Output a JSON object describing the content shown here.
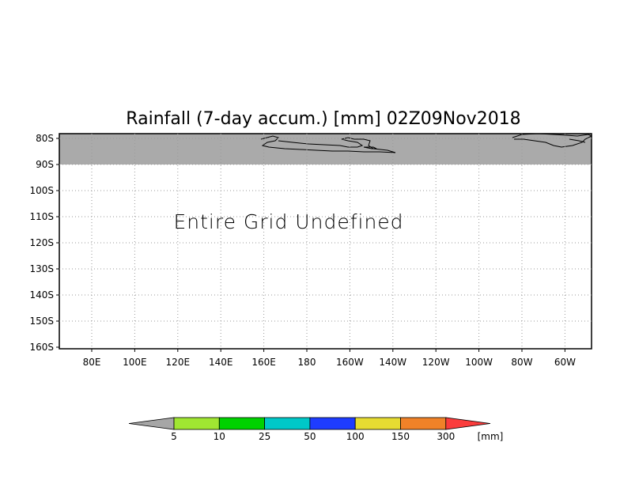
{
  "title": "Rainfall (7-day accum.) [mm] 02Z09Nov2018",
  "message": "Entire Grid Undefined",
  "map": {
    "lat_labels": [
      "80S",
      "90S",
      "100S",
      "110S",
      "120S",
      "130S",
      "140S",
      "150S",
      "160S"
    ],
    "lon_labels": [
      "80E",
      "100E",
      "120E",
      "140E",
      "160E",
      "180",
      "160W",
      "140W",
      "120W",
      "100W",
      "80W",
      "60W"
    ],
    "undefined_band_color": "#aaaaaa",
    "grid": "dotted"
  },
  "colorbar": {
    "labels": [
      "5",
      "10",
      "25",
      "50",
      "100",
      "150",
      "300"
    ],
    "unit": "[mm]",
    "under_color": "#a6a6a6",
    "colors": [
      "#a0e632",
      "#00d200",
      "#00c8c8",
      "#1e3cff",
      "#e6dc32",
      "#f08228"
    ],
    "over_color": "#fa3c3c"
  }
}
